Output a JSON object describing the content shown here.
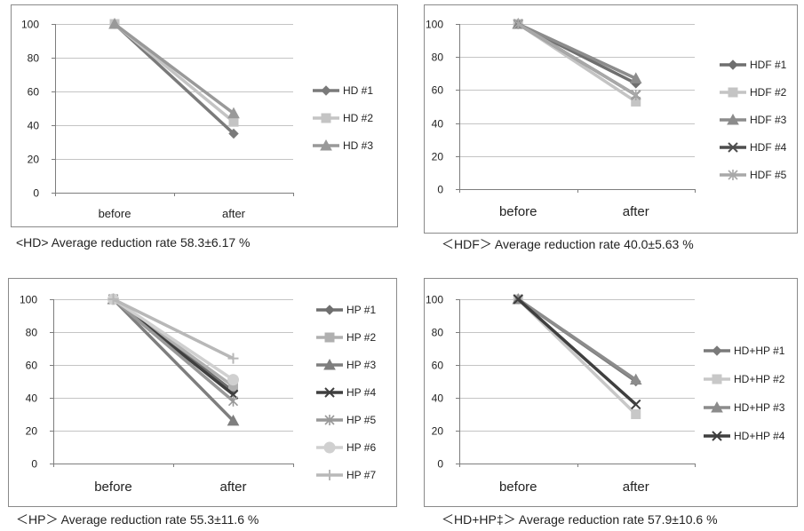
{
  "chart_data": [
    {
      "type": "line",
      "categories": [
        "before",
        "after"
      ],
      "ylim": [
        0,
        100
      ],
      "yticks": [
        0,
        20,
        40,
        60,
        80,
        100
      ],
      "grid": true,
      "legend": "right",
      "caption": "<HD> Average reduction rate   58.3±6.17 %",
      "series": [
        {
          "name": "HD #1",
          "values": [
            100,
            35
          ],
          "marker": "diamond",
          "color": "#7a7a7a"
        },
        {
          "name": "HD #2",
          "values": [
            100,
            42
          ],
          "marker": "square",
          "color": "#c4c4c4"
        },
        {
          "name": "HD #3",
          "values": [
            100,
            47
          ],
          "marker": "triangle",
          "color": "#999999"
        }
      ]
    },
    {
      "type": "line",
      "categories": [
        "before",
        "after"
      ],
      "ylim": [
        0,
        100
      ],
      "yticks": [
        0,
        20,
        40,
        60,
        80,
        100
      ],
      "grid": true,
      "legend": "right",
      "caption": "＜HDF＞ Average reduction rate    40.0±5.63 %",
      "series": [
        {
          "name": "HDF #1",
          "values": [
            100,
            64
          ],
          "marker": "diamond",
          "color": "#6f6f6f"
        },
        {
          "name": "HDF #2",
          "values": [
            100,
            53
          ],
          "marker": "square",
          "color": "#c4c4c4"
        },
        {
          "name": "HDF #3",
          "values": [
            100,
            67
          ],
          "marker": "triangle",
          "color": "#8c8c8c"
        },
        {
          "name": "HDF #4",
          "values": [
            100,
            57
          ],
          "marker": "x",
          "color": "#4e4e4e"
        },
        {
          "name": "HDF #5",
          "values": [
            100,
            57
          ],
          "marker": "asterisk",
          "color": "#a8a8a8"
        }
      ]
    },
    {
      "type": "line",
      "categories": [
        "before",
        "after"
      ],
      "ylim": [
        0,
        100
      ],
      "yticks": [
        0,
        20,
        40,
        60,
        80,
        100
      ],
      "grid": true,
      "legend": "right",
      "caption": "＜HP＞ Average reduction rate    55.3±11.6 %",
      "series": [
        {
          "name": "HP #1",
          "values": [
            100,
            44
          ],
          "marker": "diamond",
          "color": "#6f6f6f"
        },
        {
          "name": "HP #2",
          "values": [
            100,
            47
          ],
          "marker": "square",
          "color": "#b0b0b0"
        },
        {
          "name": "HP #3",
          "values": [
            100,
            26
          ],
          "marker": "triangle",
          "color": "#7e7e7e"
        },
        {
          "name": "HP #4",
          "values": [
            100,
            42
          ],
          "marker": "x",
          "color": "#3f3f3f"
        },
        {
          "name": "HP #5",
          "values": [
            100,
            38
          ],
          "marker": "asterisk",
          "color": "#999999"
        },
        {
          "name": "HP #6",
          "values": [
            100,
            51
          ],
          "marker": "circle",
          "color": "#d0d0d0"
        },
        {
          "name": "HP #7",
          "values": [
            100,
            64
          ],
          "marker": "plus",
          "color": "#b8b8b8"
        }
      ]
    },
    {
      "type": "line",
      "categories": [
        "before",
        "after"
      ],
      "ylim": [
        0,
        100
      ],
      "yticks": [
        0,
        20,
        40,
        60,
        80,
        100
      ],
      "grid": true,
      "legend": "right",
      "caption": "＜HD+HP‡＞ Average reduction rate    57.9±10.6 %",
      "series": [
        {
          "name": "HD+HP #1",
          "values": [
            100,
            50
          ],
          "marker": "diamond",
          "color": "#7a7a7a"
        },
        {
          "name": "HD+HP #2",
          "values": [
            100,
            30
          ],
          "marker": "square",
          "color": "#c8c8c8"
        },
        {
          "name": "HD+HP #3",
          "values": [
            100,
            51
          ],
          "marker": "triangle",
          "color": "#8c8c8c"
        },
        {
          "name": "HD+HP #4",
          "values": [
            100,
            36
          ],
          "marker": "x",
          "color": "#3f3f3f"
        }
      ]
    }
  ]
}
